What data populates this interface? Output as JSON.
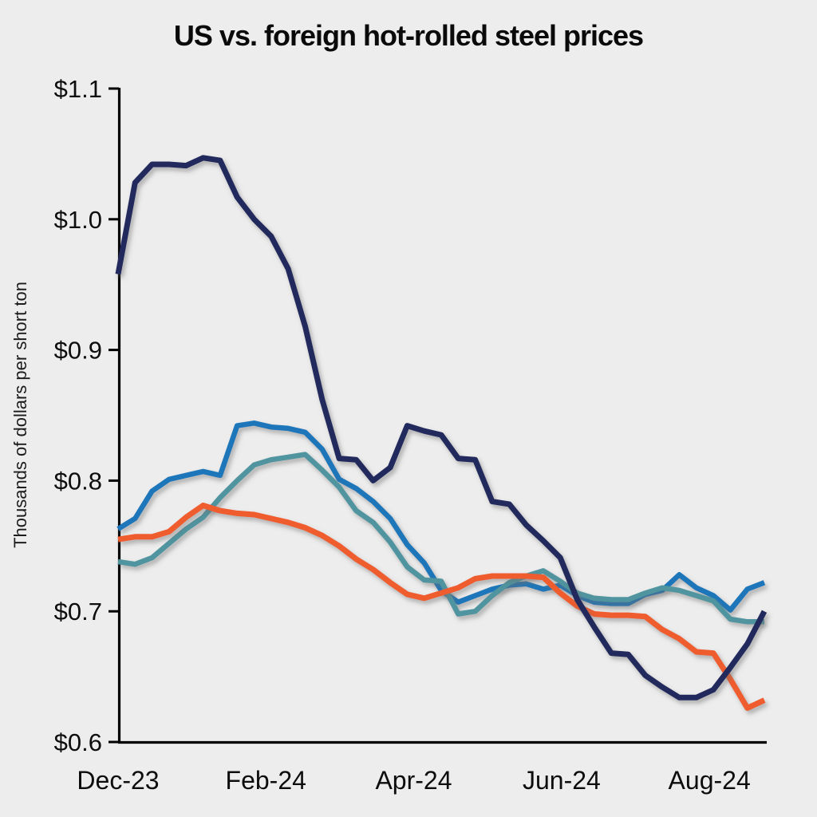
{
  "page": {
    "background_color": "#ededed",
    "axis_color": "#000000",
    "text_color": "#0d0d0d"
  },
  "chart_data": {
    "type": "line",
    "title": "US vs. foreign hot-rolled steel prices",
    "ylabel": "Thousands of dollars per short ton",
    "xlabel": "",
    "ylim": [
      0.6,
      1.1
    ],
    "grid": false,
    "legend": "none",
    "y_ticks": {
      "values": [
        1.1,
        1.0,
        0.9,
        0.8,
        0.7,
        0.6
      ],
      "labels": [
        "$1.1",
        "$1.0",
        "$0.9",
        "$0.8",
        "$0.7",
        "$0.6"
      ]
    },
    "x_unit": "weeks since Dec-23 (weekly points)",
    "x_range_weeks": [
      0,
      38
    ],
    "x_ticks": {
      "positions_weeks": [
        0,
        8.69,
        17.38,
        26.08,
        34.77
      ],
      "labels": [
        "Dec-23",
        "Feb-24",
        "Apr-24",
        "Jun-24",
        "Aug-24"
      ]
    },
    "series": [
      {
        "name": "blue-line",
        "color": "#1b76b9",
        "stroke_width": 6.5,
        "values": [
          0.763,
          0.771,
          0.792,
          0.801,
          0.804,
          0.807,
          0.804,
          0.842,
          0.844,
          0.841,
          0.84,
          0.837,
          0.824,
          0.801,
          0.794,
          0.784,
          0.771,
          0.751,
          0.737,
          0.716,
          0.707,
          0.712,
          0.717,
          0.72,
          0.721,
          0.717,
          0.72,
          0.712,
          0.707,
          0.706,
          0.706,
          0.713,
          0.716,
          0.728,
          0.718,
          0.712,
          0.701,
          0.717,
          0.722
        ]
      },
      {
        "name": "teal-line",
        "color": "#4f949f",
        "stroke_width": 6.5,
        "values": [
          0.738,
          0.736,
          0.741,
          0.752,
          0.763,
          0.772,
          0.787,
          0.8,
          0.812,
          0.816,
          0.818,
          0.82,
          0.808,
          0.795,
          0.777,
          0.768,
          0.753,
          0.734,
          0.724,
          0.723,
          0.698,
          0.7,
          0.712,
          0.722,
          0.727,
          0.731,
          0.723,
          0.714,
          0.71,
          0.709,
          0.709,
          0.714,
          0.718,
          0.716,
          0.712,
          0.708,
          0.694,
          0.692,
          0.692
        ]
      },
      {
        "name": "orange-line",
        "color": "#ef5b2d",
        "stroke_width": 7,
        "values": [
          0.755,
          0.757,
          0.757,
          0.761,
          0.772,
          0.781,
          0.777,
          0.775,
          0.774,
          0.771,
          0.768,
          0.764,
          0.758,
          0.75,
          0.74,
          0.732,
          0.722,
          0.713,
          0.71,
          0.714,
          0.718,
          0.725,
          0.727,
          0.727,
          0.727,
          0.726,
          0.714,
          0.704,
          0.698,
          0.697,
          0.697,
          0.696,
          0.686,
          0.679,
          0.669,
          0.668,
          0.648,
          0.626,
          0.632
        ]
      },
      {
        "name": "navy-line",
        "color": "#232b5d",
        "stroke_width": 7,
        "values": [
          0.958,
          1.028,
          1.042,
          1.042,
          1.041,
          1.047,
          1.045,
          1.017,
          1.0,
          0.987,
          0.962,
          0.918,
          0.862,
          0.817,
          0.816,
          0.8,
          0.81,
          0.842,
          0.838,
          0.835,
          0.817,
          0.816,
          0.784,
          0.782,
          0.766,
          0.754,
          0.741,
          0.709,
          0.688,
          0.668,
          0.667,
          0.651,
          0.642,
          0.634,
          0.634,
          0.64,
          0.657,
          0.675,
          0.7
        ]
      }
    ]
  }
}
